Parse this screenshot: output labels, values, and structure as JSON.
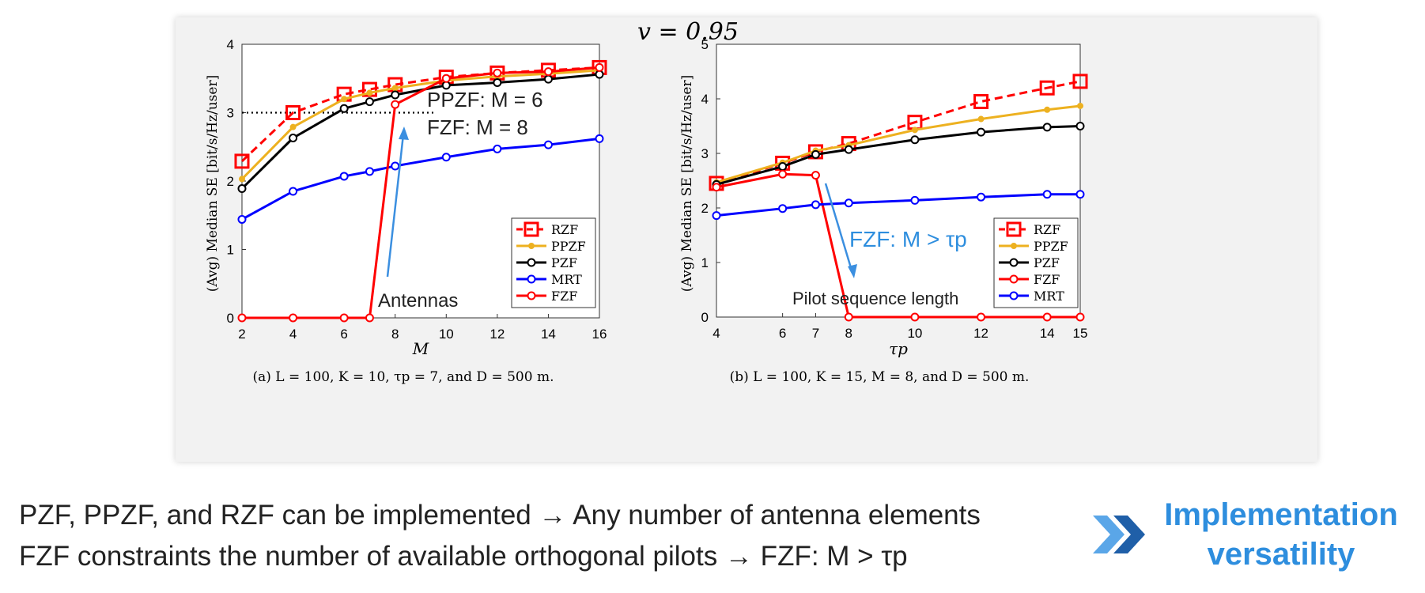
{
  "header": {
    "nu_label": "v = 0.95"
  },
  "chart_data": [
    {
      "type": "line",
      "caption": "(a) L = 100, K = 10, τp = 7, and D = 500 m.",
      "xlabel": "M",
      "ylabel": "(Avg) Median SE [bit/s/Hz/user]",
      "xlim": [
        2,
        16
      ],
      "ylim": [
        0,
        4
      ],
      "xticks": [
        2,
        4,
        6,
        8,
        10,
        12,
        14,
        16
      ],
      "yticks": [
        0,
        1,
        2,
        3,
        4
      ],
      "x": [
        2,
        4,
        6,
        7,
        8,
        10,
        12,
        14,
        16
      ],
      "series": [
        {
          "name": "RZF",
          "color": "#ff0000",
          "dashed": true,
          "marker": "square",
          "values": [
            2.29,
            3.0,
            3.27,
            3.34,
            3.41,
            3.52,
            3.58,
            3.62,
            3.66
          ]
        },
        {
          "name": "PPZF",
          "color": "#edb120",
          "dashed": false,
          "marker": "dot",
          "values": [
            2.03,
            2.79,
            3.2,
            3.29,
            3.36,
            3.47,
            3.53,
            3.57,
            3.62
          ]
        },
        {
          "name": "PZF",
          "color": "#000000",
          "dashed": false,
          "marker": "circle",
          "values": [
            1.89,
            2.63,
            3.06,
            3.16,
            3.26,
            3.4,
            3.44,
            3.49,
            3.56
          ]
        },
        {
          "name": "MRT",
          "color": "#0000ff",
          "dashed": false,
          "marker": "circle",
          "values": [
            1.44,
            1.85,
            2.07,
            2.14,
            2.22,
            2.35,
            2.47,
            2.53,
            2.62
          ]
        },
        {
          "name": "FZF",
          "color": "#ff0000",
          "dashed": false,
          "marker": "circle",
          "values": [
            0,
            0,
            0,
            0,
            3.12,
            3.5,
            3.58,
            3.6,
            3.66
          ]
        }
      ],
      "legend_order": [
        "RZF",
        "PPZF",
        "PZF",
        "MRT",
        "FZF"
      ],
      "legend_position": "bottom-right",
      "hline": {
        "y": 3,
        "x_from": 2,
        "x_to": 9.5
      },
      "annotations": {
        "line1": "PPZF: M = 6",
        "line2": "FZF: M = 8",
        "arrow_label": "Antennas"
      }
    },
    {
      "type": "line",
      "caption": "(b) L = 100, K = 15, M = 8, and D = 500 m.",
      "xlabel": "τp",
      "ylabel": "(Avg) Median SE [bit/s/Hz/user]",
      "xlim": [
        4,
        15
      ],
      "ylim": [
        0,
        5
      ],
      "xticks": [
        4,
        6,
        7,
        8,
        10,
        12,
        14,
        15
      ],
      "yticks": [
        0,
        1,
        2,
        3,
        4,
        5
      ],
      "x": [
        4,
        6,
        7,
        8,
        10,
        12,
        14,
        15
      ],
      "series": [
        {
          "name": "RZF",
          "color": "#ff0000",
          "dashed": true,
          "marker": "square",
          "values": [
            2.45,
            2.82,
            3.03,
            3.18,
            3.57,
            3.95,
            4.2,
            4.32
          ]
        },
        {
          "name": "PPZF",
          "color": "#edb120",
          "dashed": false,
          "marker": "dot",
          "values": [
            2.47,
            2.83,
            3.05,
            3.15,
            3.43,
            3.63,
            3.8,
            3.87
          ]
        },
        {
          "name": "PZF",
          "color": "#000000",
          "dashed": false,
          "marker": "circle",
          "values": [
            2.43,
            2.76,
            2.98,
            3.07,
            3.25,
            3.39,
            3.48,
            3.5
          ]
        },
        {
          "name": "FZF",
          "color": "#ff0000",
          "dashed": false,
          "marker": "circle",
          "values": [
            2.38,
            2.62,
            2.6,
            0,
            0,
            0,
            0,
            0
          ]
        },
        {
          "name": "MRT",
          "color": "#0000ff",
          "dashed": false,
          "marker": "circle",
          "values": [
            1.86,
            1.99,
            2.06,
            2.09,
            2.14,
            2.2,
            2.25,
            2.25
          ]
        }
      ],
      "legend_order": [
        "RZF",
        "PPZF",
        "PZF",
        "FZF",
        "MRT"
      ],
      "legend_position": "right",
      "annotations": {
        "label": "FZF: M > τp",
        "arrow_label": "Pilot sequence length"
      }
    }
  ],
  "footer": {
    "line1": "PZF, PPZF, and RZF can be implemented → Any number of antenna elements",
    "line2": "FZF constraints the number of available orthogonal pilots → FZF: M > τp",
    "callout_line1": "Implementation",
    "callout_line2": "versatility",
    "accent_color": "#2e8ede"
  }
}
